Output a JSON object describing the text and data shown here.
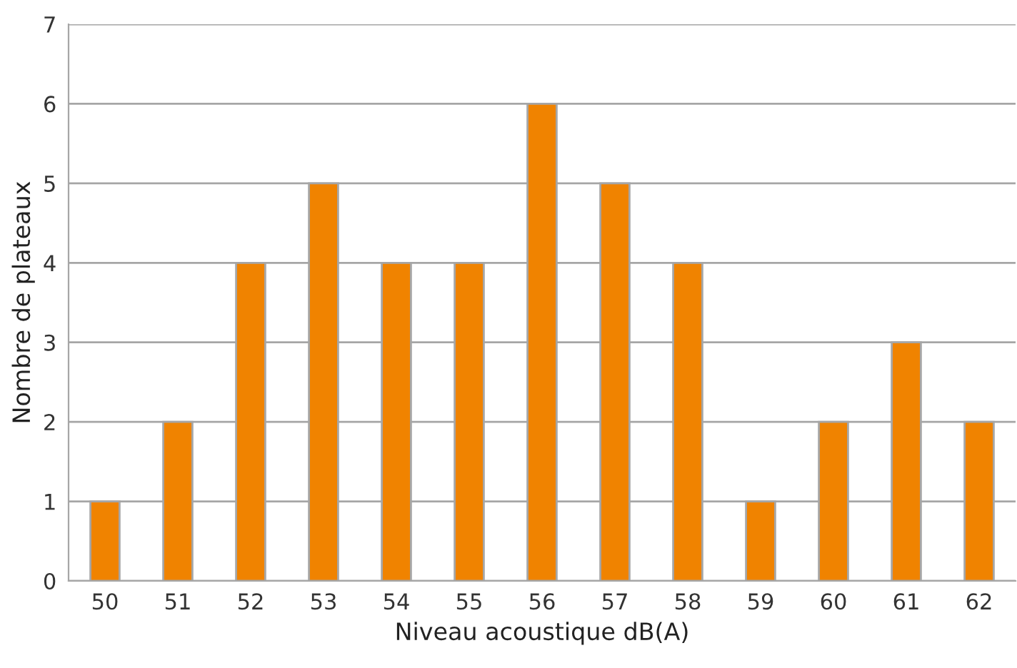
{
  "chart_data": {
    "type": "bar",
    "xlabel": "Niveau acoustique dB(A)",
    "ylabel": "Nombre de plateaux",
    "categories": [
      "50",
      "51",
      "52",
      "53",
      "54",
      "55",
      "56",
      "57",
      "58",
      "59",
      "60",
      "61",
      "62"
    ],
    "values": [
      1,
      2,
      4,
      5,
      4,
      4,
      6,
      5,
      4,
      1,
      2,
      3,
      2
    ],
    "color": "#f08300",
    "ylim": [
      0,
      7
    ],
    "yticks": [
      0,
      1,
      2,
      3,
      4,
      5,
      6,
      7
    ],
    "grid": "y",
    "legend": false
  }
}
